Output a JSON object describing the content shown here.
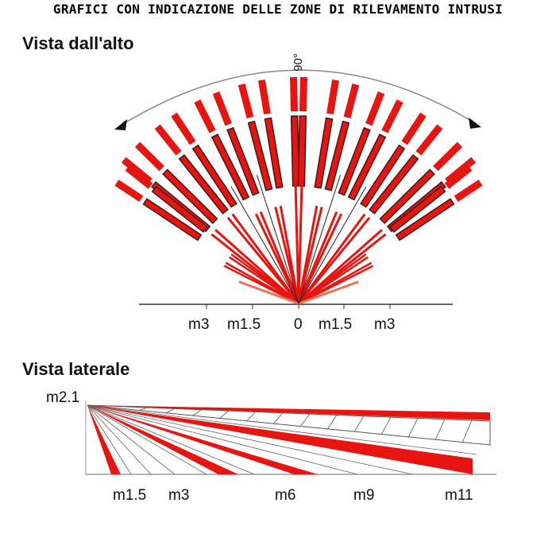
{
  "header": "GRAFICI CON INDICAZIONE DELLE ZONE DI RILEVAMENTO INTRUSI",
  "top_view": {
    "title": "Vista dall'alto",
    "angle_label": "90°",
    "axis_labels": [
      "m3",
      "m1.5",
      "0",
      "m1.5",
      "m3"
    ]
  },
  "side_view": {
    "title": "Vista laterale",
    "height_label": "m2.1",
    "axis_labels": [
      "m1.5",
      "m3",
      "m6",
      "m9",
      "m11"
    ]
  },
  "colors": {
    "beam": "#e8140f",
    "dark": "#3a1a1a",
    "line": "#555555"
  }
}
